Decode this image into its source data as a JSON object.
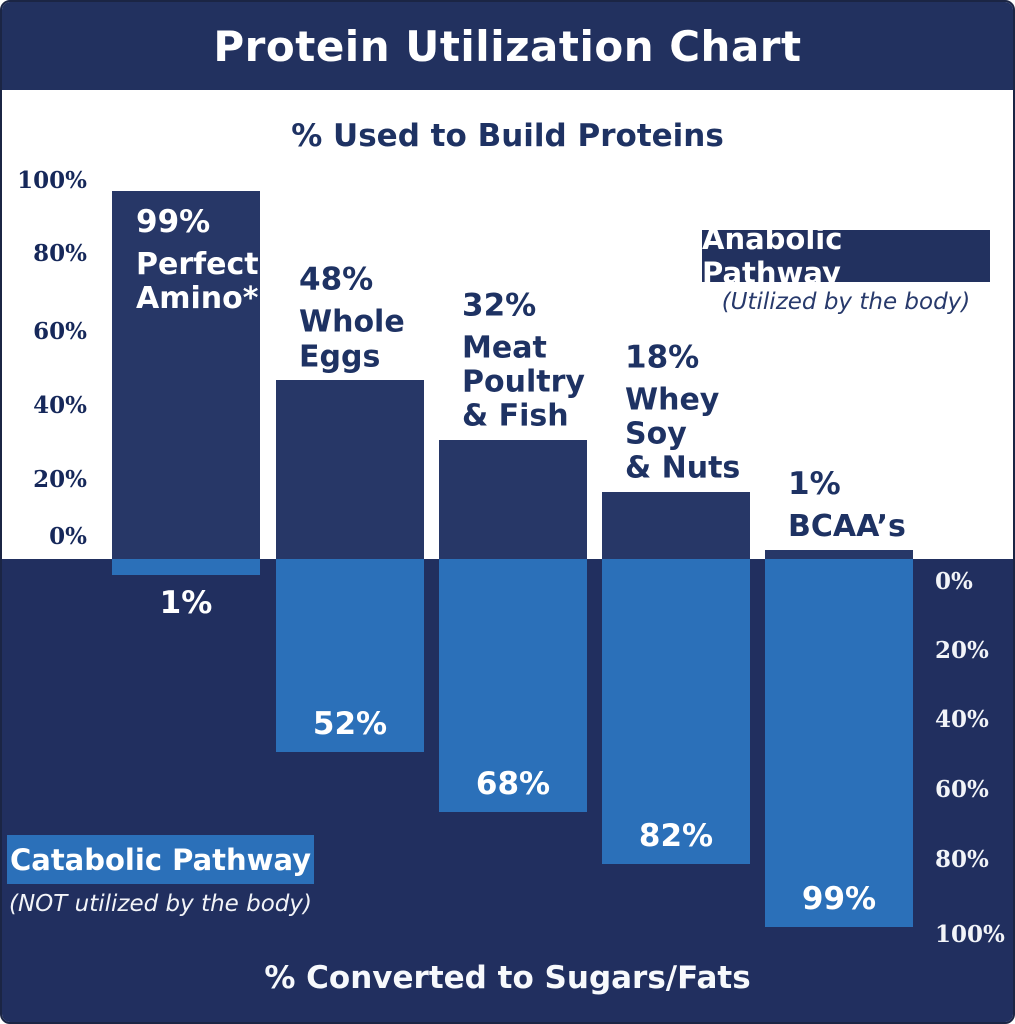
{
  "header": {
    "title": "Protein Utilization Chart"
  },
  "chart_data": {
    "type": "bar",
    "title": "Protein Utilization Chart",
    "top_section_title": "% Used to Build Proteins",
    "bottom_section_title": "% Converted to Sugars/Fats",
    "left_axis_ticks": [
      "100%",
      "80%",
      "60%",
      "40%",
      "20%",
      "0%"
    ],
    "right_axis_ticks": [
      "0%",
      "20%",
      "40%",
      "60%",
      "80%",
      "100%"
    ],
    "axis_range_top": [
      0,
      100
    ],
    "axis_range_bottom": [
      0,
      100
    ],
    "categories": [
      "Perfect Amino*",
      "Whole Eggs",
      "Meat Poultry & Fish",
      "Whey Soy & Nuts",
      "BCAA’s"
    ],
    "series": [
      {
        "name": "Anabolic Pathway (% used to build proteins)",
        "values": [
          99,
          48,
          32,
          18,
          1
        ]
      },
      {
        "name": "Catabolic Pathway (% converted to sugars/fats)",
        "values": [
          1,
          52,
          68,
          82,
          99
        ]
      }
    ],
    "bars": [
      {
        "anabolic": 99,
        "anabolic_label": "99%",
        "name": "Perfect\nAmino*",
        "catabolic": 1,
        "catabolic_label": "1%"
      },
      {
        "anabolic": 48,
        "anabolic_label": "48%",
        "name": "Whole\nEggs",
        "catabolic": 52,
        "catabolic_label": "52%"
      },
      {
        "anabolic": 32,
        "anabolic_label": "32%",
        "name": "Meat\nPoultry\n& Fish",
        "catabolic": 68,
        "catabolic_label": "68%"
      },
      {
        "anabolic": 18,
        "anabolic_label": "18%",
        "name": "Whey\nSoy\n& Nuts",
        "catabolic": 82,
        "catabolic_label": "82%"
      },
      {
        "anabolic": 1,
        "anabolic_label": "1%",
        "name": "BCAA’s",
        "catabolic": 99,
        "catabolic_label": "99%"
      }
    ]
  },
  "legend": {
    "anabolic": {
      "label": "Anabolic Pathway",
      "caption": "(Utilized by the body)"
    },
    "catabolic": {
      "label": "Catabolic Pathway",
      "caption": "(NOT utilized by the body)"
    }
  },
  "colors": {
    "header_navy": "#22315f",
    "bar_navy": "#273767",
    "background_navy": "#212f5f",
    "bar_blue": "#2b70b9",
    "text_navy": "#1e3263",
    "white": "#ffffff"
  }
}
